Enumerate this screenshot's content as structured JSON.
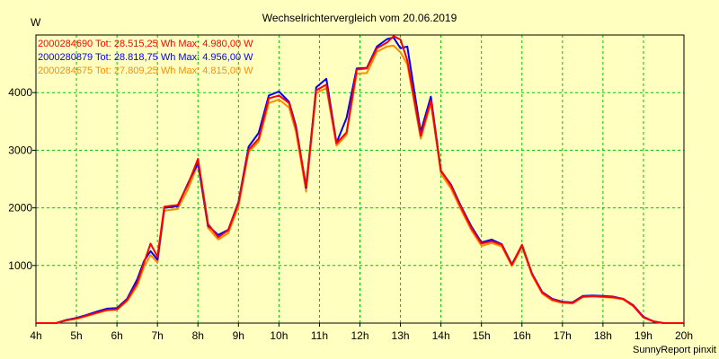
{
  "chart_data": {
    "type": "line",
    "title": "Wechselrichtervergleich vom 20.06.2019",
    "yunit": "W",
    "xlabel": "",
    "ylabel": "W",
    "xlim": [
      4,
      20
    ],
    "ylim": [
      0,
      5000
    ],
    "grid": true,
    "legend_position": "top-left",
    "x_ticks": [
      "4h",
      "5h",
      "6h",
      "7h",
      "8h",
      "9h",
      "10h",
      "11h",
      "12h",
      "13h",
      "14h",
      "15h",
      "16h",
      "17h",
      "18h",
      "19h",
      "20h"
    ],
    "y_ticks": [
      1000,
      2000,
      3000,
      4000
    ],
    "credit": "SunnyReport pinxit",
    "x": [
      4.0,
      4.5,
      4.75,
      5.0,
      5.25,
      5.5,
      5.75,
      6.0,
      6.25,
      6.5,
      6.67,
      6.83,
      7.0,
      7.17,
      7.5,
      7.75,
      8.0,
      8.25,
      8.5,
      8.75,
      9.0,
      9.25,
      9.5,
      9.75,
      10.0,
      10.25,
      10.42,
      10.67,
      10.92,
      11.17,
      11.42,
      11.67,
      11.92,
      12.17,
      12.42,
      12.67,
      12.83,
      13.0,
      13.17,
      13.5,
      13.75,
      14.0,
      14.25,
      14.5,
      14.75,
      15.0,
      15.25,
      15.5,
      15.75,
      16.0,
      16.25,
      16.5,
      16.75,
      17.0,
      17.25,
      17.5,
      17.75,
      18.0,
      18.25,
      18.5,
      18.75,
      19.0,
      19.25,
      19.5,
      20.0
    ],
    "series": [
      {
        "name": "2000284690 Tot: 28.515,25 Wh Max: 4.980,00 W",
        "color": "#ff0000",
        "values": [
          0,
          0,
          50,
          80,
          130,
          180,
          230,
          240,
          400,
          700,
          1050,
          1380,
          1150,
          2020,
          2050,
          2400,
          2850,
          1720,
          1490,
          1610,
          2080,
          3010,
          3200,
          3900,
          3950,
          3820,
          3380,
          2380,
          4040,
          4140,
          3120,
          3310,
          4400,
          4420,
          4770,
          4870,
          4980,
          4920,
          4560,
          3250,
          3860,
          2650,
          2380,
          2000,
          1650,
          1380,
          1420,
          1360,
          1010,
          1360,
          850,
          530,
          410,
          360,
          350,
          460,
          470,
          460,
          450,
          420,
          300,
          100,
          30,
          0,
          0
        ]
      },
      {
        "name": "2000280879 Tot: 28.818,75 Wh Max: 4.956,00 W",
        "color": "#0000ff",
        "values": [
          0,
          0,
          55,
          90,
          140,
          200,
          250,
          260,
          420,
          760,
          1080,
          1250,
          1100,
          2000,
          2030,
          2420,
          2780,
          1690,
          1530,
          1620,
          2100,
          3060,
          3300,
          3950,
          4020,
          3840,
          3420,
          2350,
          4090,
          4240,
          3130,
          3560,
          4420,
          4430,
          4800,
          4930,
          4956,
          4770,
          4800,
          3320,
          3930,
          2640,
          2400,
          2020,
          1680,
          1400,
          1450,
          1370,
          1020,
          1350,
          860,
          540,
          420,
          370,
          360,
          470,
          480,
          470,
          460,
          420,
          310,
          110,
          30,
          0,
          0
        ]
      },
      {
        "name": "2000284675 Tot: 27.809,25 Wh Max: 4.815,00 W",
        "color": "#ff8c00",
        "values": [
          0,
          0,
          45,
          75,
          120,
          170,
          220,
          230,
          380,
          650,
          980,
          1180,
          1050,
          1950,
          1980,
          2320,
          2760,
          1650,
          1450,
          1560,
          2020,
          2970,
          3150,
          3820,
          3880,
          3740,
          3320,
          2280,
          3990,
          4080,
          3080,
          3270,
          4330,
          4340,
          4710,
          4800,
          4815,
          4700,
          4490,
          3200,
          3820,
          2590,
          2330,
          1960,
          1610,
          1340,
          1390,
          1330,
          990,
          1320,
          830,
          510,
          390,
          350,
          340,
          450,
          460,
          450,
          440,
          410,
          290,
          95,
          25,
          0,
          0
        ]
      }
    ]
  }
}
